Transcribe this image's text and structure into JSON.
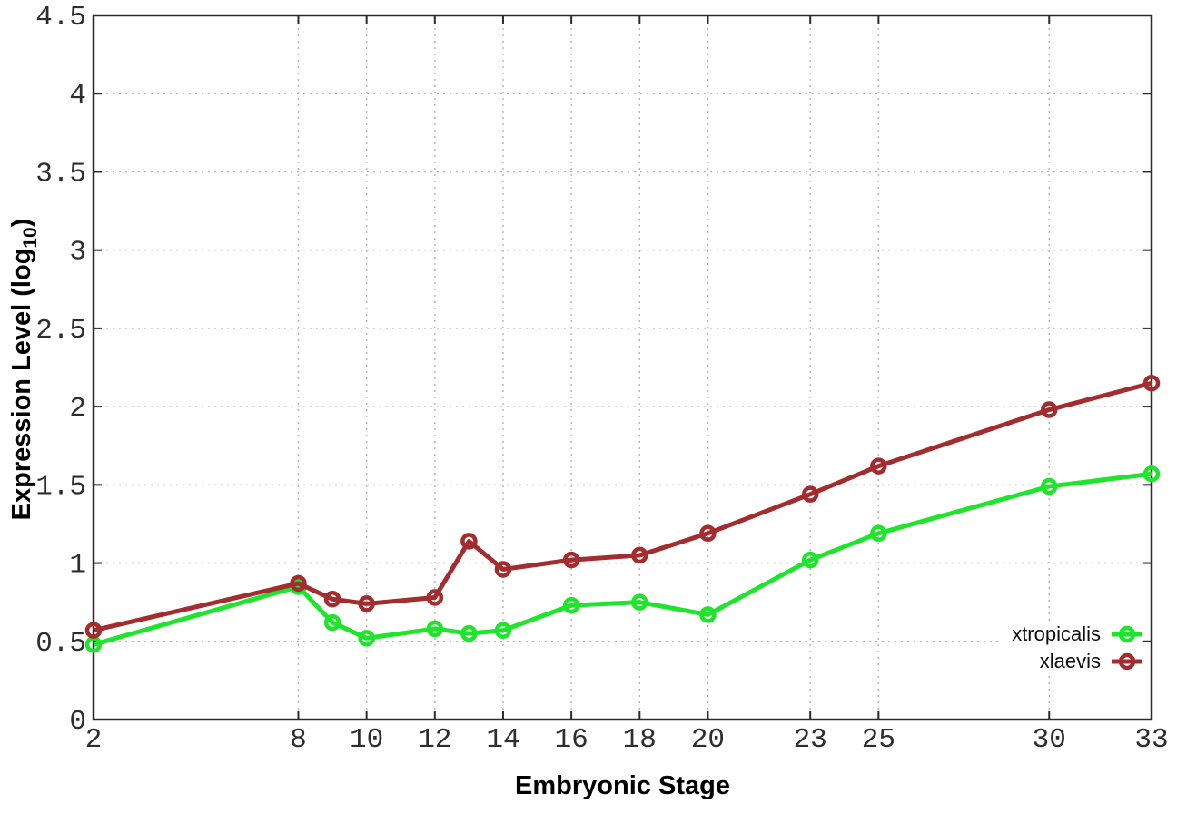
{
  "chart_data": {
    "type": "line",
    "title": "",
    "xlabel": "Embryonic Stage",
    "ylabel": "Expression Level (log10)",
    "ylabel_parts": {
      "prefix": "Expression Level (log",
      "subscript": "10",
      "suffix": ")"
    },
    "xlim": [
      2,
      33
    ],
    "ylim": [
      0,
      4.5
    ],
    "grid": true,
    "marker": "open-circle",
    "line_width": 5,
    "x": [
      2,
      8,
      9,
      10,
      12,
      13,
      14,
      16,
      18,
      20,
      23,
      25,
      30,
      33
    ],
    "x_ticks": [
      2,
      8,
      10,
      12,
      14,
      16,
      18,
      20,
      23,
      25,
      30,
      33
    ],
    "x_tick_labels": [
      "2",
      "8",
      "10",
      "12",
      "14",
      "16",
      "18",
      "20",
      "23",
      "25",
      "30",
      "33"
    ],
    "x_gridlines": [
      8,
      10,
      12,
      14,
      16,
      18,
      20,
      23,
      25,
      30
    ],
    "y_ticks": [
      0,
      0.5,
      1,
      1.5,
      2,
      2.5,
      3,
      3.5,
      4,
      4.5
    ],
    "y_tick_labels": [
      "0",
      "0.5",
      "1",
      "1.5",
      "2",
      "2.5",
      "3",
      "3.5",
      "4",
      "4.5"
    ],
    "y_gridlines": [
      0.5,
      1,
      1.5,
      2,
      2.5,
      3,
      3.5,
      4
    ],
    "legend": {
      "position": "inside-bottom-right",
      "entries": [
        "xtropicalis",
        "xlaevis"
      ]
    },
    "series": [
      {
        "name": "xtropicalis",
        "color": "#1ee42c",
        "values": [
          0.48,
          0.85,
          0.62,
          0.52,
          0.58,
          0.55,
          0.57,
          0.73,
          0.75,
          0.67,
          1.02,
          1.19,
          1.49,
          1.57
        ]
      },
      {
        "name": "xlaevis",
        "color": "#a32c2e",
        "values": [
          0.57,
          0.87,
          0.77,
          0.74,
          0.78,
          1.14,
          0.96,
          1.02,
          1.05,
          1.19,
          1.44,
          1.62,
          1.98,
          2.15
        ]
      }
    ],
    "colors": {
      "axis": "#2b2b2b",
      "grid": "#b8b8b8",
      "tick_text": "#2e2e2e",
      "background": "#ffffff"
    }
  }
}
